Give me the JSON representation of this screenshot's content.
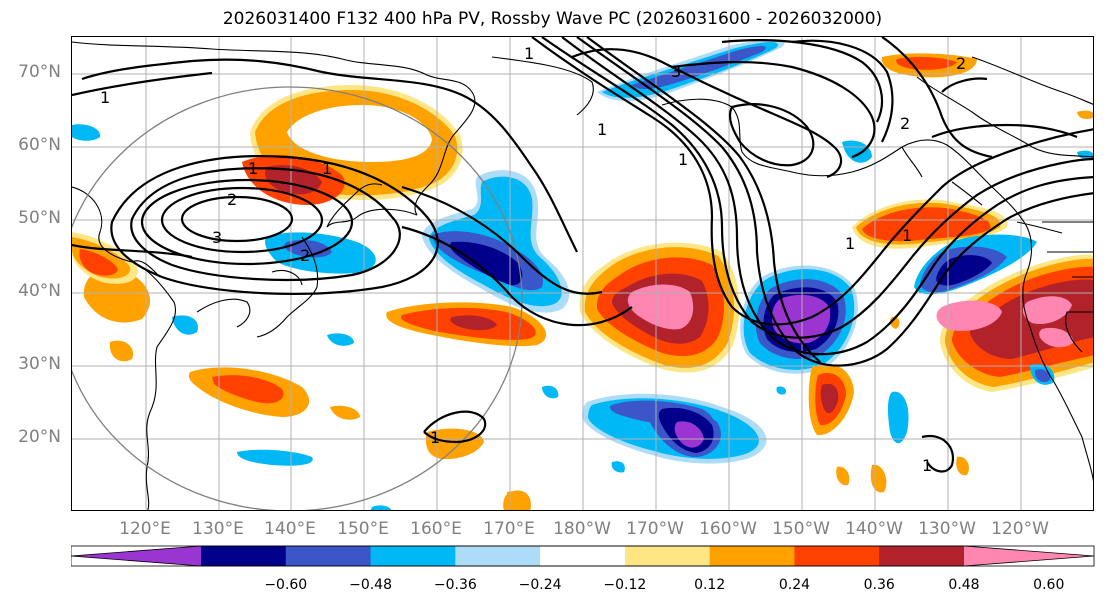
{
  "title": "2026031400 F132 400 hPa PV, Rossby Wave PC (2026031600 - 2026032000)",
  "lat_labels": [
    "70°N",
    "60°N",
    "50°N",
    "40°N",
    "30°N",
    "20°N"
  ],
  "lon_labels": [
    "120°E",
    "130°E",
    "140°E",
    "150°E",
    "160°E",
    "170°E",
    "180°W",
    "170°W",
    "160°W",
    "150°W",
    "140°W",
    "130°W",
    "120°W"
  ],
  "contour_labels": [
    "1",
    "1",
    "1",
    "1",
    "1",
    "1",
    "1",
    "1",
    "1",
    "1",
    "2",
    "2",
    "2",
    "3",
    "3"
  ],
  "colorbar": {
    "ticks": [
      "−0.60",
      "−0.48",
      "−0.36",
      "−0.24",
      "−0.12",
      "0.12",
      "0.24",
      "0.36",
      "0.48",
      "0.60"
    ],
    "colors": [
      "#9a35d1",
      "#00008b",
      "#3a56c9",
      "#00b8f5",
      "#addcf8",
      "#ffffff",
      "#ffe685",
      "#ffa200",
      "#ff4100",
      "#b2222a",
      "#ff86b0"
    ]
  }
}
